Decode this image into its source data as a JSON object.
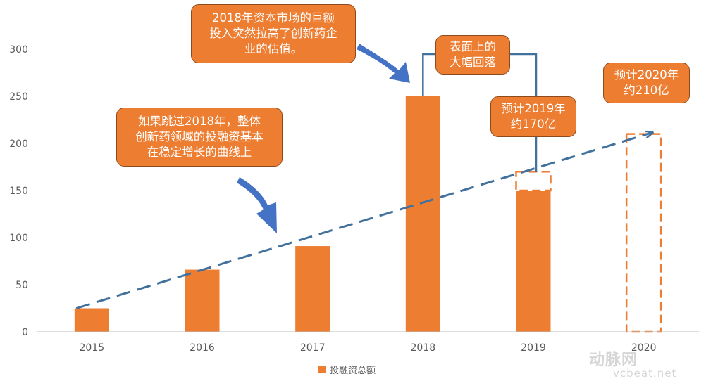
{
  "chart_data": {
    "type": "bar",
    "categories": [
      "2015",
      "2016",
      "2017",
      "2018",
      "2019",
      "2020"
    ],
    "series": [
      {
        "name": "投融资总额",
        "values": [
          25,
          66,
          91,
          250,
          150,
          null
        ]
      }
    ],
    "projections": [
      {
        "category": "2019",
        "value": 170,
        "style": "dashed-outline"
      },
      {
        "category": "2020",
        "value": 210,
        "style": "dashed-outline"
      }
    ],
    "trend_line": {
      "from": {
        "x": "2015",
        "y": 25
      },
      "to": {
        "x": "2020",
        "y": 210
      },
      "style": "dashed-arrow",
      "color": "#41719C"
    },
    "ylim": [
      0,
      300
    ],
    "yticks": [
      0,
      50,
      100,
      150,
      200,
      250,
      300
    ],
    "grid": false,
    "legend_position": "bottom",
    "title": "",
    "xlabel": "",
    "ylabel": ""
  },
  "colors": {
    "bar": "#ED7D31",
    "trend": "#41719C",
    "arrow": "#4472C4",
    "axis": "#bfbfbf",
    "text": "#595959"
  },
  "annotations": {
    "bubble_2018": [
      "2018年资本市场的巨额",
      "投入突然拉高了创新药企",
      "业的估值。"
    ],
    "bubble_drop": [
      "表面上的",
      "大幅回落"
    ],
    "bubble_2019": [
      "预计2019年",
      "约170亿"
    ],
    "bubble_2020": [
      "预计2020年",
      "约210亿"
    ],
    "bubble_trend": [
      "如果跳过2018年，整体",
      "创新药领域的投融资基本",
      "在稳定增长的曲线上"
    ]
  },
  "legend": {
    "label": "投融资总额"
  },
  "watermark": {
    "logo": "动脉网",
    "site": "vcbeat.net"
  }
}
